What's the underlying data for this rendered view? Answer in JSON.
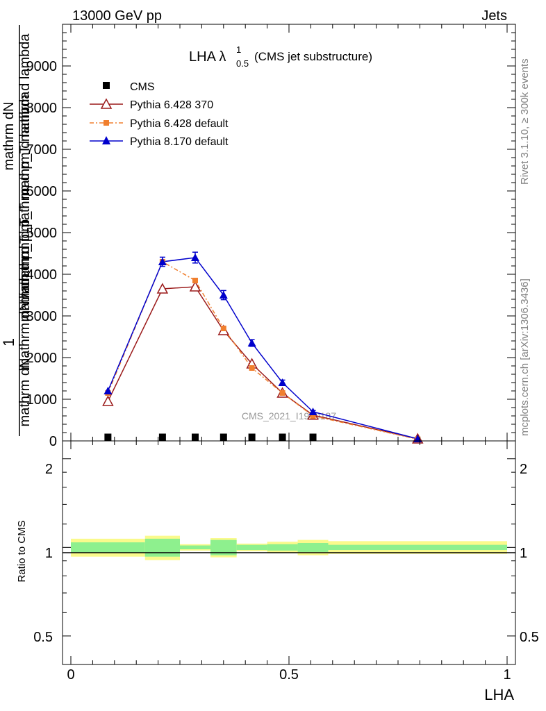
{
  "header": {
    "left": "13000 GeV pp",
    "right": "Jets"
  },
  "side_labels": {
    "rivet": "Rivet 3.1.10, ≥ 300k events",
    "mcplots": "mcplots.cern.ch [arXiv:1306.3436]"
  },
  "watermark": "CMS_2021_I1920187",
  "plot_title": {
    "main": "LHA λ",
    "sup": "1",
    "sub": "0.5",
    "suffix": "(CMS jet substructure)"
  },
  "y_axis_main": {
    "numerator_parts": [
      "1",
      "mathrm dN"
    ],
    "label_overlaps": [
      "mathrm dN / mathrm d p_T mathrm d lambda",
      "mathrm dN",
      "mathrm d p_T mathrm d p_T mathrm d lambda",
      "mathrm d p_T"
    ]
  },
  "ratio_panel": {
    "ylabel": "Ratio to CMS",
    "tick_labels": [
      "2",
      "1",
      "0.5"
    ]
  },
  "x_axis": {
    "label": "LHA",
    "tick_labels": [
      "0",
      "0.5",
      "1"
    ]
  },
  "main_tick_labels": [
    "0",
    "1000",
    "2000",
    "3000",
    "4000",
    "5000",
    "6000",
    "7000",
    "8000",
    "9000"
  ],
  "colors": {
    "cms": "#000000",
    "pythia6_370": "#9b1a1a",
    "pythia6_default": "#f07f2e",
    "pythia8": "#0000cc",
    "band_inner": "#8ef08e",
    "band_outer": "#fafa8c"
  },
  "chart_data": {
    "type": "line",
    "title": "LHA λ^1_0.5 (CMS jet substructure)",
    "xlabel": "LHA",
    "ylabel": "1 / mathrm dN / mathrm d p_T mathrm d lambda",
    "xlim": [
      0,
      1
    ],
    "ylim": [
      0,
      10000
    ],
    "ratio_ylim": [
      0.4,
      2.3
    ],
    "ratio_scale": "log",
    "legend_position": "top-left",
    "series": [
      {
        "name": "CMS",
        "marker": "square",
        "x": [
          0.085,
          0.21,
          0.285,
          0.35,
          0.415,
          0.485,
          0.555
        ],
        "y": [
          5,
          5,
          5,
          5,
          5,
          5,
          5
        ]
      },
      {
        "name": "Pythia 6.428 370",
        "marker": "open-triangle",
        "x": [
          0.085,
          0.21,
          0.285,
          0.35,
          0.415,
          0.485,
          0.555,
          0.795
        ],
        "y": [
          950,
          3650,
          3700,
          2650,
          1850,
          1150,
          620,
          50
        ]
      },
      {
        "name": "Pythia 6.428 default",
        "marker": "square",
        "x": [
          0.085,
          0.21,
          0.285,
          0.35,
          0.415,
          0.485,
          0.555,
          0.795
        ],
        "y": [
          1150,
          4300,
          3850,
          2700,
          1750,
          1150,
          600,
          40
        ]
      },
      {
        "name": "Pythia 8.170 default",
        "marker": "filled-triangle",
        "x": [
          0.085,
          0.21,
          0.285,
          0.35,
          0.415,
          0.485,
          0.555,
          0.795
        ],
        "y": [
          1200,
          4300,
          4400,
          3500,
          2350,
          1400,
          700,
          50
        ],
        "yerr": [
          0,
          110,
          130,
          110,
          80,
          60,
          30,
          0
        ]
      }
    ],
    "ratio_band": {
      "x_edges": [
        0,
        0.17,
        0.25,
        0.32,
        0.38,
        0.45,
        0.52,
        0.59,
        1.0
      ],
      "inner": [
        0.04,
        0.07,
        0.015,
        0.06,
        0.02,
        0.025,
        0.035,
        0.02
      ],
      "outer": [
        0.07,
        0.095,
        0.025,
        0.075,
        0.03,
        0.045,
        0.06,
        0.05
      ]
    }
  }
}
